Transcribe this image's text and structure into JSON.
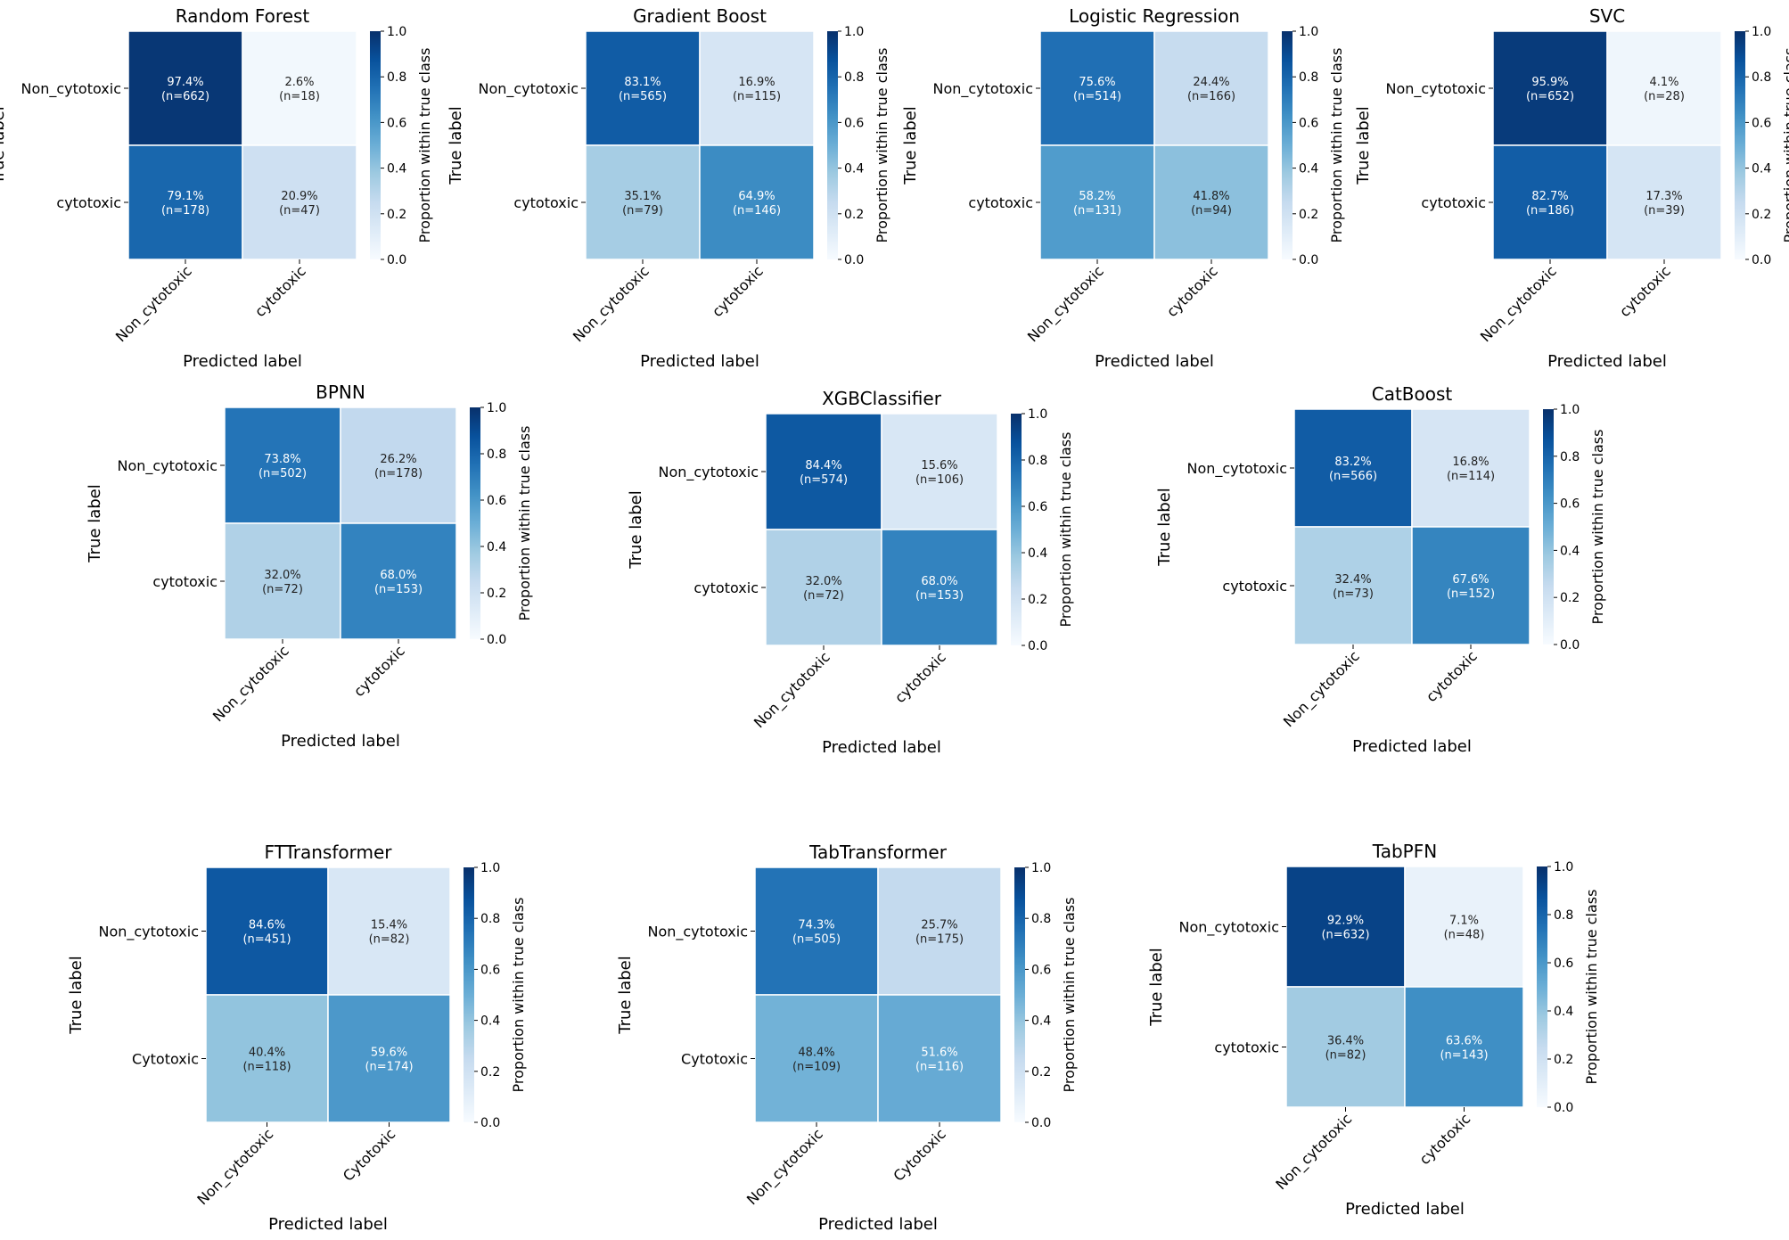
{
  "chart_data": [
    {
      "type": "heatmap",
      "title": "Random Forest",
      "xlabel": "Predicted label",
      "ylabel": "True label",
      "row_labels": [
        "Non_cytotoxic",
        "cytotoxic"
      ],
      "col_labels": [
        "Non_cytotoxic",
        "cytotoxic"
      ],
      "percent_labels": [
        [
          "97.4%",
          "2.6%"
        ],
        [
          "79.1%",
          "20.9%"
        ]
      ],
      "count_labels": [
        [
          "(n=662)",
          "(n=18)"
        ],
        [
          "(n=178)",
          "(n=47)"
        ]
      ],
      "values": [
        [
          0.974,
          0.026
        ],
        [
          0.791,
          0.209
        ]
      ],
      "colorbar": {
        "label": "Proportion within true class",
        "ticks": [
          "0.0",
          "0.2",
          "0.4",
          "0.6",
          "0.8",
          "1.0"
        ],
        "range": [
          0,
          1
        ],
        "colormap": "Blues"
      }
    },
    {
      "type": "heatmap",
      "title": "Gradient Boost",
      "xlabel": "Predicted label",
      "ylabel": "True label",
      "row_labels": [
        "Non_cytotoxic",
        "cytotoxic"
      ],
      "col_labels": [
        "Non_cytotoxic",
        "cytotoxic"
      ],
      "percent_labels": [
        [
          "83.1%",
          "16.9%"
        ],
        [
          "35.1%",
          "64.9%"
        ]
      ],
      "count_labels": [
        [
          "(n=565)",
          "(n=115)"
        ],
        [
          "(n=79)",
          "(n=146)"
        ]
      ],
      "values": [
        [
          0.831,
          0.169
        ],
        [
          0.351,
          0.649
        ]
      ],
      "colorbar": {
        "label": "Proportion within true class",
        "ticks": [
          "0.0",
          "0.2",
          "0.4",
          "0.6",
          "0.8",
          "1.0"
        ],
        "range": [
          0,
          1
        ],
        "colormap": "Blues"
      }
    },
    {
      "type": "heatmap",
      "title": "Logistic Regression",
      "xlabel": "Predicted label",
      "ylabel": "True label",
      "row_labels": [
        "Non_cytotoxic",
        "cytotoxic"
      ],
      "col_labels": [
        "Non_cytotoxic",
        "cytotoxic"
      ],
      "percent_labels": [
        [
          "75.6%",
          "24.4%"
        ],
        [
          "58.2%",
          "41.8%"
        ]
      ],
      "count_labels": [
        [
          "(n=514)",
          "(n=166)"
        ],
        [
          "(n=131)",
          "(n=94)"
        ]
      ],
      "values": [
        [
          0.756,
          0.244
        ],
        [
          0.582,
          0.418
        ]
      ],
      "colorbar": {
        "label": "Proportion within true class",
        "ticks": [
          "0.0",
          "0.2",
          "0.4",
          "0.6",
          "0.8",
          "1.0"
        ],
        "range": [
          0,
          1
        ],
        "colormap": "Blues"
      }
    },
    {
      "type": "heatmap",
      "title": "SVC",
      "xlabel": "Predicted label",
      "ylabel": "True label",
      "row_labels": [
        "Non_cytotoxic",
        "cytotoxic"
      ],
      "col_labels": [
        "Non_cytotoxic",
        "cytotoxic"
      ],
      "percent_labels": [
        [
          "95.9%",
          "4.1%"
        ],
        [
          "82.7%",
          "17.3%"
        ]
      ],
      "count_labels": [
        [
          "(n=652)",
          "(n=28)"
        ],
        [
          "(n=186)",
          "(n=39)"
        ]
      ],
      "values": [
        [
          0.959,
          0.041
        ],
        [
          0.827,
          0.173
        ]
      ],
      "colorbar": {
        "label": "Proportion within true class",
        "ticks": [
          "0.0",
          "0.2",
          "0.4",
          "0.6",
          "0.8",
          "1.0"
        ],
        "range": [
          0,
          1
        ],
        "colormap": "Blues"
      }
    },
    {
      "type": "heatmap",
      "title": "BPNN",
      "xlabel": "Predicted label",
      "ylabel": "True label",
      "row_labels": [
        "Non_cytotoxic",
        "cytotoxic"
      ],
      "col_labels": [
        "Non_cytotoxic",
        "cytotoxic"
      ],
      "percent_labels": [
        [
          "73.8%",
          "26.2%"
        ],
        [
          "32.0%",
          "68.0%"
        ]
      ],
      "count_labels": [
        [
          "(n=502)",
          "(n=178)"
        ],
        [
          "(n=72)",
          "(n=153)"
        ]
      ],
      "values": [
        [
          0.738,
          0.262
        ],
        [
          0.32,
          0.68
        ]
      ],
      "colorbar": {
        "label": "Proportion within true class",
        "ticks": [
          "0.0",
          "0.2",
          "0.4",
          "0.6",
          "0.8",
          "1.0"
        ],
        "range": [
          0,
          1
        ],
        "colormap": "Blues"
      }
    },
    {
      "type": "heatmap",
      "title": "XGBClassifier",
      "xlabel": "Predicted label",
      "ylabel": "True label",
      "row_labels": [
        "Non_cytotoxic",
        "cytotoxic"
      ],
      "col_labels": [
        "Non_cytotoxic",
        "cytotoxic"
      ],
      "percent_labels": [
        [
          "84.4%",
          "15.6%"
        ],
        [
          "32.0%",
          "68.0%"
        ]
      ],
      "count_labels": [
        [
          "(n=574)",
          "(n=106)"
        ],
        [
          "(n=72)",
          "(n=153)"
        ]
      ],
      "values": [
        [
          0.844,
          0.156
        ],
        [
          0.32,
          0.68
        ]
      ],
      "colorbar": {
        "label": "Proportion within true class",
        "ticks": [
          "0.0",
          "0.2",
          "0.4",
          "0.6",
          "0.8",
          "1.0"
        ],
        "range": [
          0,
          1
        ],
        "colormap": "Blues"
      }
    },
    {
      "type": "heatmap",
      "title": "CatBoost",
      "xlabel": "Predicted label",
      "ylabel": "True label",
      "row_labels": [
        "Non_cytotoxic",
        "cytotoxic"
      ],
      "col_labels": [
        "Non_cytotoxic",
        "cytotoxic"
      ],
      "percent_labels": [
        [
          "83.2%",
          "16.8%"
        ],
        [
          "32.4%",
          "67.6%"
        ]
      ],
      "count_labels": [
        [
          "(n=566)",
          "(n=114)"
        ],
        [
          "(n=73)",
          "(n=152)"
        ]
      ],
      "values": [
        [
          0.832,
          0.168
        ],
        [
          0.324,
          0.676
        ]
      ],
      "colorbar": {
        "label": "Proportion within true class",
        "ticks": [
          "0.0",
          "0.2",
          "0.4",
          "0.6",
          "0.8",
          "1.0"
        ],
        "range": [
          0,
          1
        ],
        "colormap": "Blues"
      }
    },
    {
      "type": "heatmap",
      "title": "FTTransformer",
      "xlabel": "Predicted label",
      "ylabel": "True label",
      "row_labels": [
        "Non_cytotoxic",
        "Cytotoxic"
      ],
      "col_labels": [
        "Non_cytotoxic",
        "Cytotoxic"
      ],
      "percent_labels": [
        [
          "84.6%",
          "15.4%"
        ],
        [
          "40.4%",
          "59.6%"
        ]
      ],
      "count_labels": [
        [
          "(n=451)",
          "(n=82)"
        ],
        [
          "(n=118)",
          "(n=174)"
        ]
      ],
      "values": [
        [
          0.846,
          0.154
        ],
        [
          0.404,
          0.596
        ]
      ],
      "colorbar": {
        "label": "Proportion within true class",
        "ticks": [
          "0.0",
          "0.2",
          "0.4",
          "0.6",
          "0.8",
          "1.0"
        ],
        "range": [
          0,
          1
        ],
        "colormap": "Blues"
      }
    },
    {
      "type": "heatmap",
      "title": "TabTransformer",
      "xlabel": "Predicted label",
      "ylabel": "True label",
      "row_labels": [
        "Non_cytotoxic",
        "Cytotoxic"
      ],
      "col_labels": [
        "Non_cytotoxic",
        "Cytotoxic"
      ],
      "percent_labels": [
        [
          "74.3%",
          "25.7%"
        ],
        [
          "48.4%",
          "51.6%"
        ]
      ],
      "count_labels": [
        [
          "(n=505)",
          "(n=175)"
        ],
        [
          "(n=109)",
          "(n=116)"
        ]
      ],
      "values": [
        [
          0.743,
          0.257
        ],
        [
          0.484,
          0.516
        ]
      ],
      "colorbar": {
        "label": "Proportion within true class",
        "ticks": [
          "0.0",
          "0.2",
          "0.4",
          "0.6",
          "0.8",
          "1.0"
        ],
        "range": [
          0,
          1
        ],
        "colormap": "Blues"
      }
    },
    {
      "type": "heatmap",
      "title": "TabPFN",
      "xlabel": "Predicted label",
      "ylabel": "True label",
      "row_labels": [
        "Non_cytotoxic",
        "cytotoxic"
      ],
      "col_labels": [
        "Non_cytotoxic",
        "cytotoxic"
      ],
      "percent_labels": [
        [
          "92.9%",
          "7.1%"
        ],
        [
          "36.4%",
          "63.6%"
        ]
      ],
      "count_labels": [
        [
          "(n=632)",
          "(n=48)"
        ],
        [
          "(n=82)",
          "(n=143)"
        ]
      ],
      "values": [
        [
          0.929,
          0.071
        ],
        [
          0.364,
          0.636
        ]
      ],
      "colorbar": {
        "label": "Proportion within true class",
        "ticks": [
          "0.0",
          "0.2",
          "0.4",
          "0.6",
          "0.8",
          "1.0"
        ],
        "range": [
          0,
          1
        ],
        "colormap": "Blues"
      }
    }
  ]
}
